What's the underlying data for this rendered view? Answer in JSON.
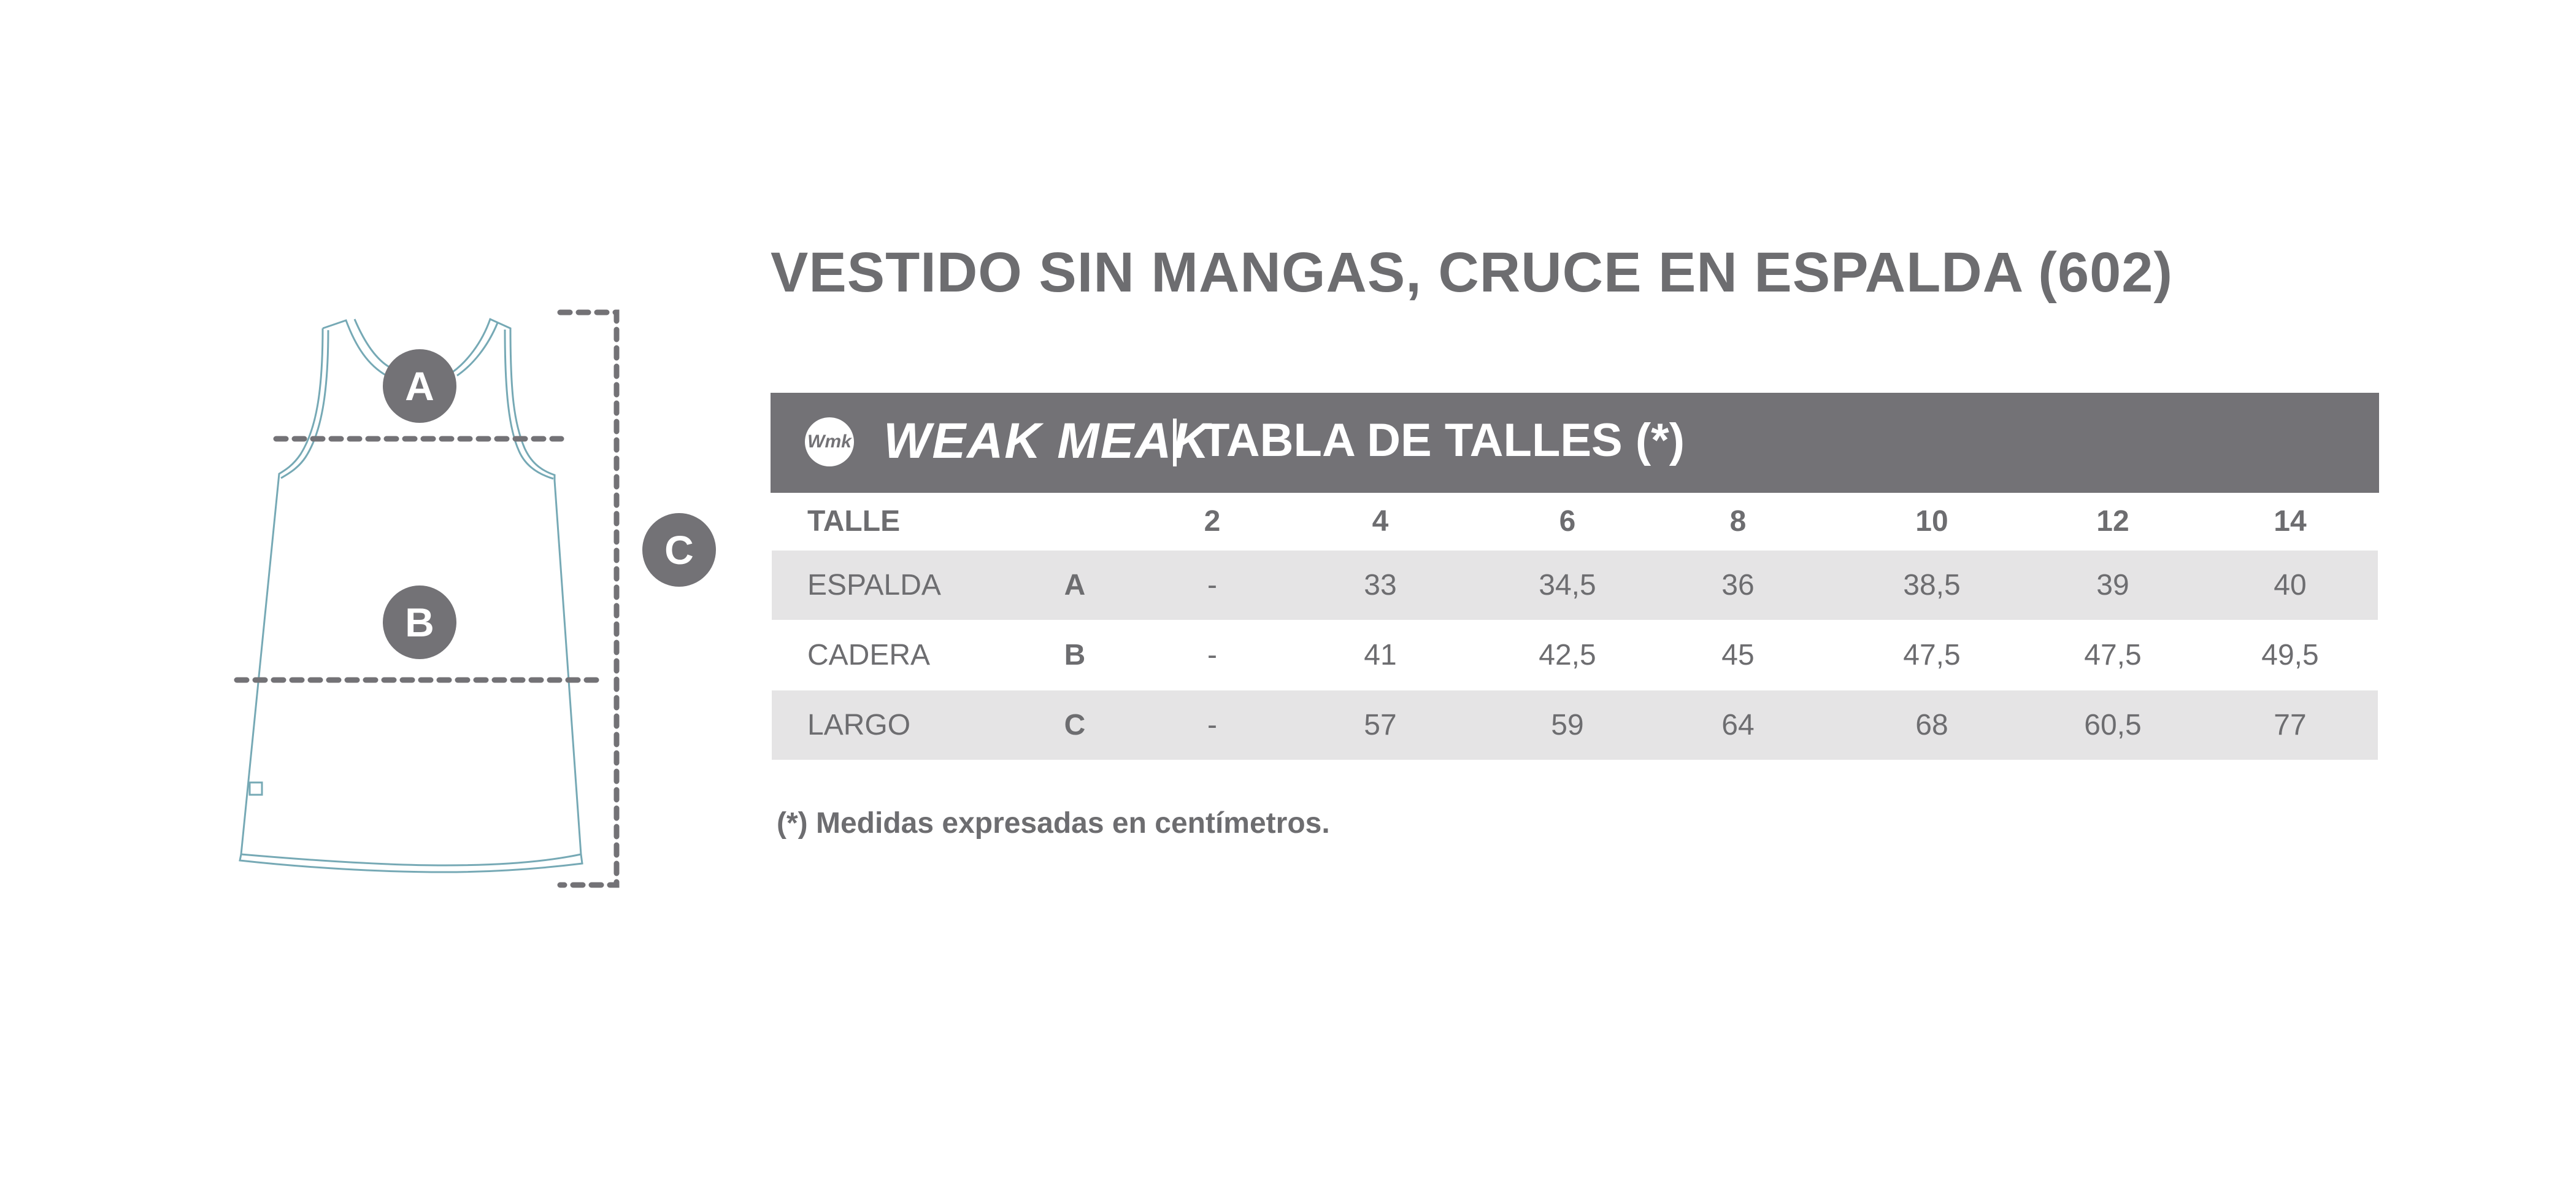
{
  "title": "VESTIDO SIN MANGAS, CRUCE EN ESPALDA (602)",
  "header": {
    "logo_text": "Wmk",
    "brand": "WEAK MEAK",
    "label": "TABLA DE TALLES (*)"
  },
  "colors": {
    "header_bg": "#737276",
    "text": "#6d6d70",
    "row_shade": "#e5e4e5",
    "garment_outline": "#76a9b5"
  },
  "diagram": {
    "markers": [
      "A",
      "B",
      "C"
    ]
  },
  "table": {
    "header": {
      "label": "TALLE",
      "sizes": [
        "2",
        "4",
        "6",
        "8",
        "10",
        "12",
        "14"
      ]
    },
    "rows": [
      {
        "name": "ESPALDA",
        "letter": "A",
        "values": [
          "-",
          "33",
          "34,5",
          "36",
          "38,5",
          "39",
          "40"
        ]
      },
      {
        "name": "CADERA",
        "letter": "B",
        "values": [
          "-",
          "41",
          "42,5",
          "45",
          "47,5",
          "47,5",
          "49,5"
        ]
      },
      {
        "name": "LARGO",
        "letter": "C",
        "values": [
          "-",
          "57",
          "59",
          "64",
          "68",
          "60,5",
          "77"
        ]
      }
    ]
  },
  "footnote": "(*) Medidas expresadas en centímetros."
}
